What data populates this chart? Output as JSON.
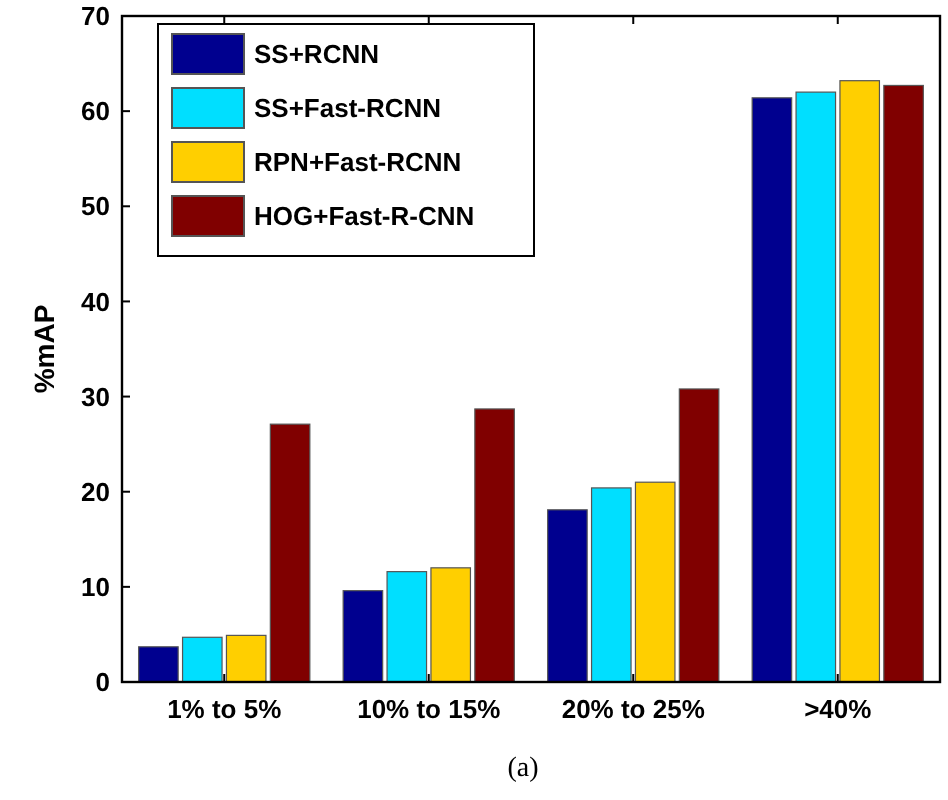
{
  "chart_data": {
    "type": "bar",
    "ylabel": "%mAP",
    "categories": [
      "1% to 5%",
      "10% to 15%",
      "20% to 25%",
      ">40%"
    ],
    "series": [
      {
        "name": "SS+RCNN",
        "color": "#00008f",
        "values": [
          3.7,
          9.6,
          18.1,
          61.4
        ]
      },
      {
        "name": "SS+Fast-RCNN",
        "color": "#00dfff",
        "values": [
          4.7,
          11.6,
          20.4,
          62.0
        ]
      },
      {
        "name": "RPN+Fast-RCNN",
        "color": "#ffcf00",
        "values": [
          4.9,
          12.0,
          21.0,
          63.2
        ]
      },
      {
        "name": "HOG+Fast-R-CNN",
        "color": "#800000",
        "values": [
          27.1,
          28.7,
          30.8,
          62.7
        ]
      }
    ],
    "ylim": [
      0,
      70
    ],
    "yticks": [
      0,
      10,
      20,
      30,
      40,
      50,
      60,
      70
    ],
    "grid": false,
    "legend": "top left",
    "annotations": [
      "(a)"
    ]
  }
}
